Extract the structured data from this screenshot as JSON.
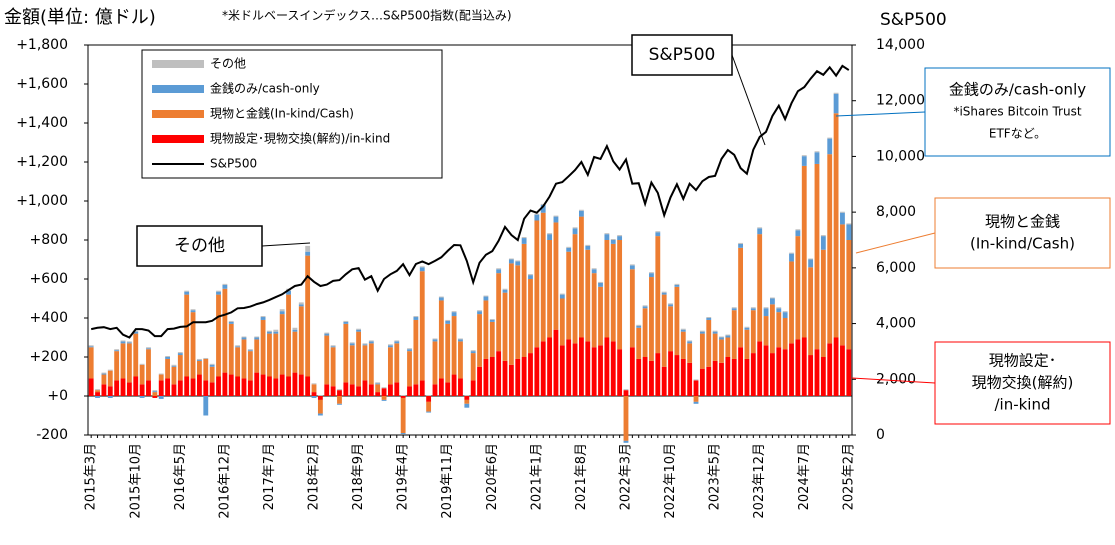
{
  "chart_data": {
    "type": "bar",
    "title": "金額(単位: 億ドル)",
    "subtitle": "*米ドルベースインデックス…S&P500指数(配当込み)",
    "y2_title": "S&P500",
    "stacked": true,
    "categories": [
      "2015年3月",
      null,
      null,
      null,
      null,
      null,
      null,
      "2015年10月",
      null,
      null,
      null,
      null,
      null,
      null,
      "2016年5月",
      null,
      null,
      null,
      null,
      null,
      null,
      "2016年12月",
      null,
      null,
      null,
      null,
      null,
      null,
      "2017年7月",
      null,
      null,
      null,
      null,
      null,
      null,
      "2018年2月",
      null,
      null,
      null,
      null,
      null,
      null,
      "2018年9月",
      null,
      null,
      null,
      null,
      null,
      null,
      "2019年4月",
      null,
      null,
      null,
      null,
      null,
      null,
      "2019年11月",
      null,
      null,
      null,
      null,
      null,
      null,
      "2020年6月",
      null,
      null,
      null,
      null,
      null,
      null,
      "2021年1月",
      null,
      null,
      null,
      null,
      null,
      null,
      "2021年8月",
      null,
      null,
      null,
      null,
      null,
      null,
      "2022年3月",
      null,
      null,
      null,
      null,
      null,
      null,
      "2022年10月",
      null,
      null,
      null,
      null,
      null,
      null,
      "2023年5月",
      null,
      null,
      null,
      null,
      null,
      null,
      "2023年12月",
      null,
      null,
      null,
      null,
      null,
      null,
      "2024年7月",
      null,
      null,
      null,
      null,
      null,
      null,
      "2025年2月"
    ],
    "series": [
      {
        "name": "現物設定･現物交換(解約)/in-kind",
        "color": "#ff0000",
        "values": [
          90,
          20,
          60,
          50,
          80,
          90,
          70,
          100,
          60,
          80,
          -10,
          80,
          90,
          60,
          80,
          100,
          90,
          110,
          80,
          70,
          100,
          120,
          110,
          100,
          90,
          80,
          120,
          110,
          100,
          90,
          110,
          100,
          120,
          110,
          100,
          20,
          -20,
          60,
          50,
          30,
          70,
          60,
          50,
          80,
          60,
          20,
          40,
          60,
          70,
          -10,
          50,
          60,
          80,
          -30,
          60,
          90,
          70,
          110,
          90,
          -20,
          80,
          150,
          190,
          200,
          230,
          180,
          160,
          190,
          200,
          220,
          250,
          280,
          300,
          340,
          260,
          290,
          270,
          300,
          280,
          250,
          260,
          300,
          280,
          240,
          30,
          250,
          190,
          200,
          180,
          220,
          150,
          230,
          210,
          190,
          170,
          80,
          140,
          150,
          180,
          170,
          200,
          190,
          250,
          190,
          220,
          280,
          260,
          220,
          250,
          240,
          270,
          290,
          300,
          210,
          240,
          200,
          270,
          300,
          260,
          240
        ]
      },
      {
        "name": "現物と金銭(In-kind/Cash)",
        "color": "#ed7d31",
        "values": [
          160,
          10,
          50,
          80,
          150,
          180,
          200,
          220,
          100,
          160,
          20,
          30,
          100,
          90,
          130,
          420,
          340,
          70,
          110,
          80,
          420,
          430,
          260,
          150,
          200,
          150,
          170,
          280,
          220,
          230,
          310,
          420,
          210,
          350,
          620,
          40,
          -70,
          250,
          200,
          -40,
          300,
          200,
          280,
          180,
          210,
          40,
          -20,
          190,
          200,
          -180,
          180,
          330,
          560,
          -50,
          220,
          400,
          300,
          300,
          190,
          -20,
          140,
          270,
          300,
          180,
          400,
          350,
          520,
          480,
          580,
          380,
          650,
          660,
          500,
          550,
          240,
          450,
          560,
          620,
          470,
          380,
          300,
          500,
          500,
          560,
          -230,
          400,
          160,
          250,
          430,
          600,
          370,
          230,
          350,
          140,
          100,
          -30,
          180,
          240,
          140,
          120,
          100,
          250,
          510,
          150,
          220,
          550,
          150,
          250,
          180,
          160,
          420,
          530,
          880,
          450,
          950,
          550,
          970,
          1150,
          620,
          560
        ]
      },
      {
        "name": "金銭のみ/cash-only",
        "color": "#5b9bd5",
        "values": [
          5,
          -10,
          5,
          -10,
          5,
          10,
          5,
          10,
          -10,
          5,
          5,
          -15,
          10,
          5,
          10,
          15,
          10,
          5,
          -100,
          10,
          15,
          20,
          10,
          5,
          10,
          5,
          10,
          15,
          10,
          10,
          15,
          20,
          10,
          10,
          20,
          -10,
          -10,
          10,
          5,
          -5,
          10,
          10,
          10,
          5,
          10,
          5,
          -5,
          10,
          10,
          -5,
          10,
          15,
          20,
          -5,
          10,
          15,
          15,
          20,
          10,
          -20,
          10,
          15,
          20,
          10,
          20,
          15,
          20,
          20,
          30,
          20,
          30,
          40,
          30,
          30,
          20,
          20,
          30,
          30,
          20,
          20,
          20,
          30,
          20,
          20,
          -10,
          20,
          10,
          10,
          20,
          20,
          10,
          10,
          10,
          10,
          10,
          -10,
          10,
          10,
          10,
          10,
          10,
          10,
          20,
          10,
          10,
          30,
          40,
          30,
          20,
          30,
          40,
          30,
          50,
          40,
          60,
          70,
          80,
          100,
          60,
          80
        ]
      },
      {
        "name": "その他",
        "color": "#bfbfbf",
        "values": [
          5,
          5,
          5,
          5,
          5,
          5,
          5,
          5,
          5,
          5,
          5,
          5,
          5,
          5,
          5,
          5,
          5,
          5,
          5,
          5,
          5,
          5,
          5,
          5,
          5,
          5,
          5,
          5,
          5,
          10,
          10,
          10,
          10,
          10,
          30,
          5,
          5,
          5,
          5,
          5,
          5,
          5,
          5,
          5,
          5,
          5,
          5,
          5,
          5,
          5,
          5,
          5,
          5,
          5,
          5,
          5,
          5,
          5,
          5,
          5,
          5,
          5,
          5,
          5,
          5,
          5,
          5,
          5,
          5,
          5,
          5,
          5,
          5,
          5,
          5,
          5,
          5,
          5,
          5,
          5,
          5,
          5,
          5,
          5,
          5,
          5,
          5,
          5,
          5,
          5,
          5,
          5,
          5,
          5,
          5,
          5,
          5,
          5,
          5,
          5,
          5,
          5,
          5,
          5,
          5,
          5,
          5,
          5,
          5,
          5,
          5,
          5,
          5,
          5,
          5,
          5,
          5,
          5,
          5,
          5
        ]
      },
      {
        "name": "S&P500",
        "color": "#000000",
        "type": "line",
        "axis": "y2",
        "values": [
          3800,
          3850,
          3870,
          3800,
          3850,
          3600,
          3500,
          3800,
          3800,
          3750,
          3550,
          3550,
          3800,
          3820,
          3880,
          3900,
          4050,
          4050,
          4050,
          4100,
          4250,
          4320,
          4400,
          4550,
          4560,
          4610,
          4700,
          4760,
          4850,
          4950,
          5050,
          5200,
          5350,
          5400,
          5700,
          5500,
          5350,
          5400,
          5530,
          5560,
          5770,
          5950,
          5990,
          5580,
          5700,
          5180,
          5600,
          5770,
          5890,
          6130,
          5740,
          6140,
          6230,
          6130,
          6250,
          6380,
          6610,
          6820,
          6810,
          6250,
          5480,
          6180,
          6470,
          6600,
          6970,
          7470,
          7180,
          7000,
          7760,
          8060,
          7980,
          8210,
          8560,
          9020,
          9080,
          9290,
          9510,
          9800,
          9340,
          9980,
          9910,
          10370,
          9820,
          9530,
          9890,
          9020,
          9040,
          8300,
          9060,
          8690,
          7890,
          8530,
          9000,
          8480,
          9020,
          8790,
          9110,
          9260,
          9300,
          9910,
          10230,
          10060,
          9580,
          9380,
          10240,
          10700,
          10880,
          11450,
          11820,
          11340,
          11910,
          12340,
          12490,
          12790,
          13060,
          12930,
          13200,
          12900,
          13250,
          13100
        ]
      }
    ],
    "ylim": [
      -200,
      1800
    ],
    "yticks": [
      {
        "value": -200,
        "label": "-200"
      },
      {
        "value": 0,
        "label": "+0"
      },
      {
        "value": 200,
        "label": "+200"
      },
      {
        "value": 400,
        "label": "+400"
      },
      {
        "value": 600,
        "label": "+600"
      },
      {
        "value": 800,
        "label": "+800"
      },
      {
        "value": 1000,
        "label": "+1,000"
      },
      {
        "value": 1200,
        "label": "+1,200"
      },
      {
        "value": 1400,
        "label": "+1,400"
      },
      {
        "value": 1600,
        "label": "+1,600"
      },
      {
        "value": 1800,
        "label": "+1,800"
      }
    ],
    "y2lim": [
      0,
      14000
    ],
    "y2ticks": [
      0,
      {
        "value": 2000,
        "label": "2,000"
      },
      {
        "value": 4000,
        "label": "4,000"
      },
      {
        "value": 6000,
        "label": "6,000"
      },
      {
        "value": 8000,
        "label": "8,000"
      },
      {
        "value": 10000,
        "label": "10,000"
      },
      {
        "value": 12000,
        "label": "12,000"
      },
      {
        "value": 14000,
        "label": "14,000"
      }
    ],
    "legend": "upper left",
    "annotations": [
      {
        "text": [
          "その他"
        ],
        "color": "#000000"
      },
      {
        "text": [
          "S&P500"
        ],
        "color": "#000000"
      },
      {
        "text": [
          "金銭のみ/cash-only",
          "*iShares Bitcoin Trust",
          "ETFなど。"
        ],
        "color": "#0070c0"
      },
      {
        "text": [
          "現物と金銭",
          "(In-kind/Cash)"
        ],
        "color": "#ed7d31"
      },
      {
        "text": [
          "現物設定･",
          "現物交換(解約)",
          "/in-kind"
        ],
        "color": "#ff0000"
      }
    ]
  }
}
